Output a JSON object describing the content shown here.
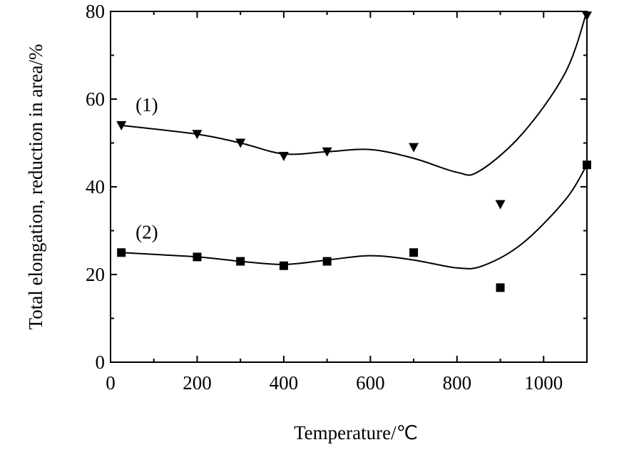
{
  "chart_data": {
    "type": "scatter",
    "title": "",
    "xlabel": "Temperature/℃",
    "ylabel": "Total elongation, reduction in area/%",
    "xlim": [
      0,
      1100
    ],
    "ylim": [
      0,
      80
    ],
    "xticks": [
      0,
      200,
      400,
      600,
      800,
      1000
    ],
    "yticks": [
      0,
      20,
      40,
      60,
      80
    ],
    "grid": false,
    "legend": "none",
    "series": [
      {
        "label": "(1)",
        "marker": "triangle-down",
        "color": "#000000",
        "points": [
          {
            "x": 25,
            "y": 54
          },
          {
            "x": 200,
            "y": 52
          },
          {
            "x": 300,
            "y": 50
          },
          {
            "x": 400,
            "y": 47
          },
          {
            "x": 500,
            "y": 48
          },
          {
            "x": 700,
            "y": 49
          },
          {
            "x": 900,
            "y": 36
          },
          {
            "x": 1100,
            "y": 79
          }
        ],
        "curve": [
          {
            "x": 25,
            "y": 54
          },
          {
            "x": 200,
            "y": 52
          },
          {
            "x": 300,
            "y": 50
          },
          {
            "x": 400,
            "y": 47.5
          },
          {
            "x": 500,
            "y": 48
          },
          {
            "x": 600,
            "y": 48.5
          },
          {
            "x": 700,
            "y": 46.5
          },
          {
            "x": 800,
            "y": 43.3
          },
          {
            "x": 850,
            "y": 43.5
          },
          {
            "x": 950,
            "y": 52
          },
          {
            "x": 1050,
            "y": 66
          },
          {
            "x": 1100,
            "y": 80
          }
        ]
      },
      {
        "label": "(2)",
        "marker": "square",
        "color": "#000000",
        "points": [
          {
            "x": 25,
            "y": 25
          },
          {
            "x": 200,
            "y": 24
          },
          {
            "x": 300,
            "y": 23
          },
          {
            "x": 400,
            "y": 22
          },
          {
            "x": 500,
            "y": 23
          },
          {
            "x": 700,
            "y": 25
          },
          {
            "x": 900,
            "y": 17
          },
          {
            "x": 1100,
            "y": 45
          }
        ],
        "curve": [
          {
            "x": 25,
            "y": 25
          },
          {
            "x": 200,
            "y": 24
          },
          {
            "x": 300,
            "y": 23
          },
          {
            "x": 400,
            "y": 22.3
          },
          {
            "x": 500,
            "y": 23.3
          },
          {
            "x": 600,
            "y": 24.3
          },
          {
            "x": 700,
            "y": 23.3
          },
          {
            "x": 800,
            "y": 21.5
          },
          {
            "x": 860,
            "y": 22
          },
          {
            "x": 950,
            "y": 27
          },
          {
            "x": 1050,
            "y": 37
          },
          {
            "x": 1100,
            "y": 45
          }
        ]
      }
    ]
  }
}
